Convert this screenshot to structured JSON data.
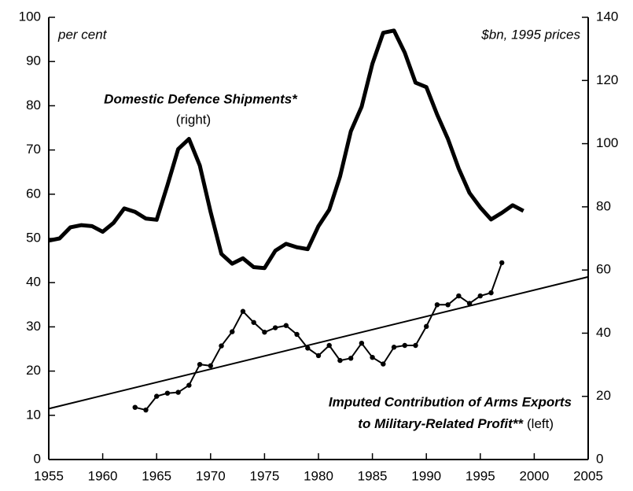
{
  "chart_data": {
    "type": "line",
    "annotations": {
      "left_unit": "per cent",
      "right_unit": "$bn, 1995 prices",
      "shipments_label": "Domestic Defence Shipments*",
      "shipments_axis": "(right)",
      "exports_label_1": "Imputed Contribution of Arms Exports",
      "exports_label_2": "to Military-Related Profit**",
      "exports_axis": "(left)"
    },
    "xlim": [
      1955,
      2005
    ],
    "xticks": [
      1955,
      1960,
      1965,
      1970,
      1975,
      1980,
      1985,
      1990,
      1995,
      2000,
      2005
    ],
    "ylim": [
      0,
      100
    ],
    "yticks": [
      0,
      10,
      20,
      30,
      40,
      50,
      60,
      70,
      80,
      90,
      100
    ],
    "y2lim": [
      0,
      140
    ],
    "y2ticks": [
      0,
      20,
      40,
      60,
      80,
      100,
      120,
      140
    ],
    "series": [
      {
        "axis": "y2",
        "color": "#000000",
        "x": [
          1955,
          1956,
          1957,
          1958,
          1959,
          1960,
          1961,
          1962,
          1963,
          1964,
          1965,
          1966,
          1967,
          1968,
          1969,
          1970,
          1971,
          1972,
          1973,
          1974,
          1975,
          1976,
          1977,
          1978,
          1979,
          1980,
          1981,
          1982,
          1983,
          1984,
          1985,
          1986,
          1987,
          1988,
          1989,
          1990,
          1991,
          1992,
          1993,
          1994,
          1995,
          1996,
          1997,
          1998,
          1999
        ],
        "values": [
          69.3,
          70,
          73.5,
          74.2,
          73.9,
          72.1,
          74.9,
          79.5,
          78.4,
          76.3,
          75.9,
          86.8,
          98.3,
          101.5,
          93.1,
          78.4,
          65.1,
          62,
          63.7,
          60.9,
          60.6,
          66.1,
          68.3,
          67.2,
          66.6,
          73.9,
          79.1,
          89.6,
          103.9,
          111.7,
          125.3,
          135.1,
          135.8,
          128.8,
          119.3,
          117.9,
          109.2,
          101.5,
          92.1,
          84.4,
          79.8,
          76,
          78.1,
          80.5,
          78.7
        ]
      },
      {
        "axis": "y",
        "color": "#000000",
        "markers": true,
        "x": [
          1963,
          1964,
          1965,
          1966,
          1967,
          1968,
          1969,
          1970,
          1971,
          1972,
          1973,
          1974,
          1975,
          1976,
          1977,
          1978,
          1979,
          1980,
          1981,
          1982,
          1983,
          1984,
          1985,
          1986,
          1987,
          1988,
          1989,
          1990,
          1991,
          1992,
          1993,
          1994,
          1995,
          1996,
          1997
        ],
        "values": [
          11.8,
          11.2,
          14.3,
          15,
          15.2,
          16.8,
          21.5,
          21.2,
          25.7,
          28.9,
          33.5,
          31,
          28.8,
          29.8,
          30.3,
          28.3,
          25.2,
          23.5,
          25.8,
          22.4,
          22.9,
          26.3,
          23.1,
          21.6,
          25.4,
          25.8,
          25.8,
          30.1,
          35,
          35,
          37,
          35.3,
          37,
          37.7,
          44.5
        ]
      }
    ],
    "trend": {
      "axis": "y",
      "color": "#000000",
      "x": [
        1955,
        2005
      ],
      "values": [
        11.5,
        41.3
      ]
    }
  }
}
